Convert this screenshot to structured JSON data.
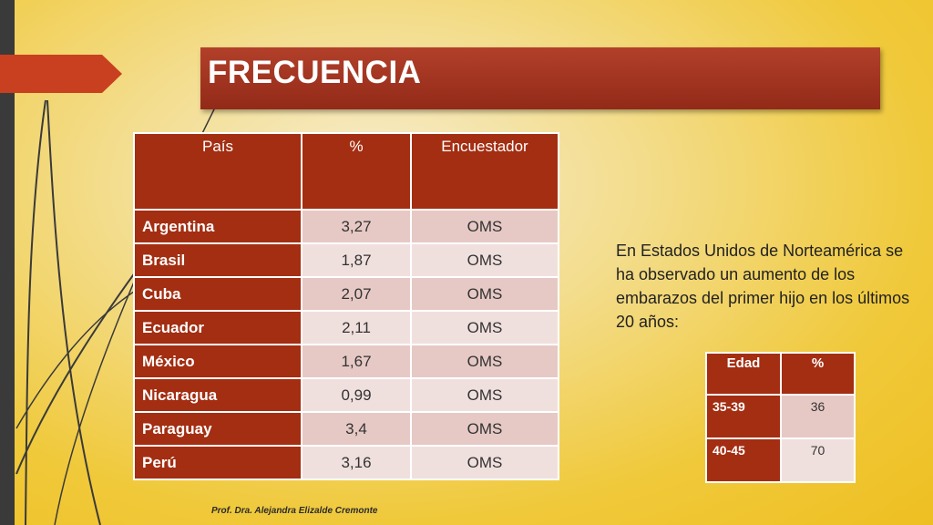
{
  "slide": {
    "title": "FRECUENCIA",
    "colors": {
      "accent": "#a32e12",
      "title_bar": "#a23622",
      "background": "#f0c93a"
    }
  },
  "main_table": {
    "headers": [
      "País",
      "%",
      "Encuestador"
    ],
    "rows": [
      {
        "country": "Argentina",
        "value": "3,27",
        "source": "OMS"
      },
      {
        "country": "Brasil",
        "value": "1,87",
        "source": "OMS"
      },
      {
        "country": "Cuba",
        "value": "2,07",
        "source": "OMS"
      },
      {
        "country": "Ecuador",
        "value": "2,11",
        "source": "OMS"
      },
      {
        "country": "México",
        "value": "1,67",
        "source": "OMS"
      },
      {
        "country": "Nicaragua",
        "value": "0,99",
        "source": "OMS"
      },
      {
        "country": "Paraguay",
        "value": "3,4",
        "source": "OMS"
      },
      {
        "country": "Perú",
        "value": "3,16",
        "source": "OMS"
      }
    ]
  },
  "description": "En Estados Unidos de Norteamérica se ha observado un aumento de los embarazos del primer hijo en los últimos 20 años:",
  "age_table": {
    "headers": [
      "Edad",
      "%"
    ],
    "rows": [
      {
        "age": "35-39",
        "value": "36"
      },
      {
        "age": "40-45",
        "value": "70"
      }
    ]
  },
  "footer": "Prof. Dra. Alejandra Elizalde Cremonte"
}
